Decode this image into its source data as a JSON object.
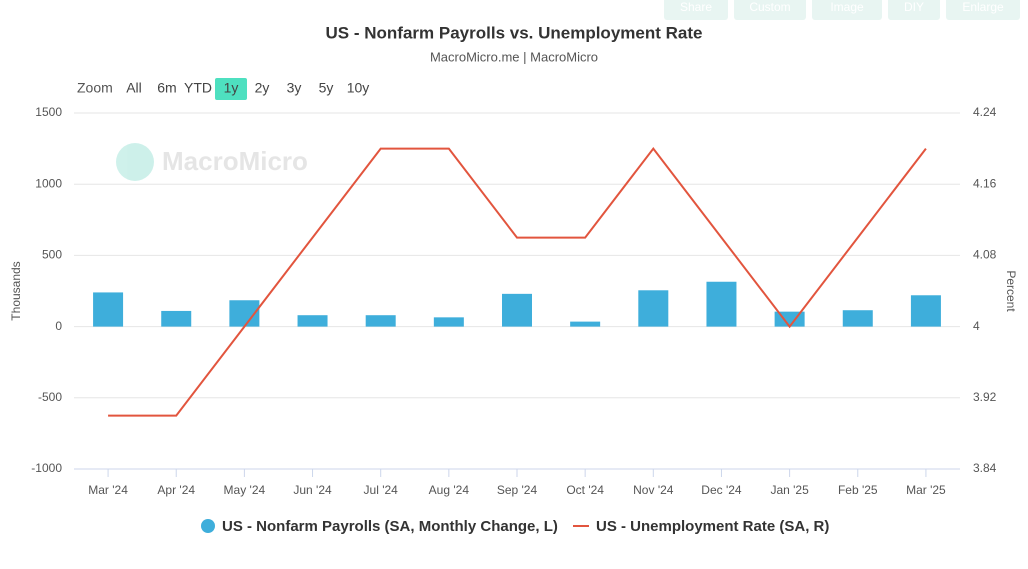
{
  "toolbar": [
    "Share",
    "Custom",
    "Image",
    "DIY",
    "Enlarge"
  ],
  "chart_data": {
    "type": "bar-line",
    "title": "US - Nonfarm Payrolls vs. Unemployment Rate",
    "subtitle": "MacroMicro.me | MacroMicro",
    "watermark": "MacroMicro",
    "range_selector": {
      "label": "Zoom",
      "buttons": [
        "All",
        "6m",
        "YTD",
        "1y",
        "2y",
        "3y",
        "5y",
        "10y"
      ],
      "selected": 3
    },
    "categories": [
      "Mar '24",
      "Apr '24",
      "May '24",
      "Jun '24",
      "Jul '24",
      "Aug '24",
      "Sep '24",
      "Oct '24",
      "Nov '24",
      "Dec '24",
      "Jan '25",
      "Feb '25",
      "Mar '25"
    ],
    "series": [
      {
        "name": "US - Nonfarm Payrolls (SA, Monthly Change, L)",
        "type": "bar",
        "color": "#3eaedb",
        "axis": "y",
        "values": [
          240,
          110,
          185,
          80,
          80,
          65,
          230,
          35,
          255,
          315,
          105,
          115,
          220
        ]
      },
      {
        "name": "US - Unemployment Rate (SA, R)",
        "type": "line",
        "color": "#e2553e",
        "axis": "y2",
        "values": [
          3.9,
          3.9,
          4.0,
          4.1,
          4.2,
          4.2,
          4.1,
          4.1,
          4.2,
          4.1,
          4.0,
          4.1,
          4.2
        ]
      }
    ],
    "ylabel": "Thousands",
    "y2label": "Percent",
    "ylim": [
      -1000,
      1500
    ],
    "yticks": [
      -1000,
      -500,
      0,
      500,
      1000,
      1500
    ],
    "y2lim": [
      3.84,
      4.24
    ],
    "y2ticks": [
      3.84,
      3.92,
      4,
      4.08,
      4.16,
      4.24
    ],
    "grid": true
  }
}
